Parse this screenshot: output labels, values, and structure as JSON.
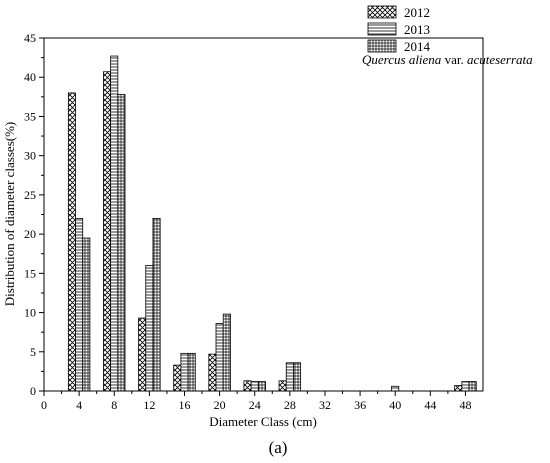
{
  "chart_data": {
    "type": "bar",
    "xlabel": "Diameter Class (cm)",
    "ylabel": "Distribution of diameter classes(%)",
    "xlim": [
      0,
      50
    ],
    "ylim": [
      0,
      45
    ],
    "x_ticks": [
      0,
      4,
      8,
      12,
      16,
      20,
      24,
      28,
      32,
      36,
      40,
      44,
      48
    ],
    "y_ticks": [
      0,
      5,
      10,
      15,
      20,
      25,
      30,
      35,
      40,
      45
    ],
    "legend_position": "top-right",
    "legend_note_species": "Quercus aliena",
    "legend_note_mid": " var. ",
    "legend_note_variety": "acuteserrata",
    "panel_label": "(a)",
    "x": [
      4,
      8,
      12,
      16,
      20,
      24,
      28,
      32,
      36,
      40,
      44,
      48
    ],
    "series": [
      {
        "name": "2012",
        "pattern": "crosshatch",
        "values": [
          38.0,
          40.7,
          9.3,
          3.3,
          4.7,
          1.3,
          1.3,
          0,
          0,
          0,
          0,
          0.7
        ]
      },
      {
        "name": "2013",
        "pattern": "horizontal",
        "values": [
          22.0,
          42.7,
          16.0,
          4.8,
          8.6,
          1.2,
          3.6,
          0,
          0,
          0.6,
          0,
          1.2
        ]
      },
      {
        "name": "2014",
        "pattern": "grid",
        "values": [
          19.5,
          37.8,
          22.0,
          4.8,
          9.8,
          1.2,
          3.6,
          0,
          0,
          0,
          0,
          1.2
        ]
      }
    ]
  }
}
